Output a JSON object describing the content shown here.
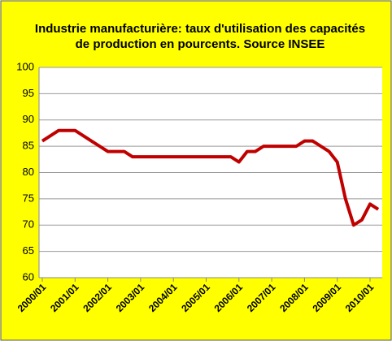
{
  "chart_data": {
    "type": "line",
    "title": [
      "Industrie manufacturière: taux d'utilisation des capacités",
      "de production en pourcents. Source INSEE"
    ],
    "categories": [
      "2000/01",
      null,
      null,
      null,
      "2001/01",
      null,
      null,
      null,
      "2002/01",
      null,
      null,
      null,
      "2003/01",
      null,
      null,
      null,
      "2004/01",
      null,
      null,
      null,
      "2005/01",
      null,
      null,
      null,
      "2006/01",
      null,
      null,
      null,
      "2007/01",
      null,
      null,
      null,
      "2008/01",
      null,
      null,
      null,
      "2009/01",
      null,
      null,
      null,
      "2010/01",
      null
    ],
    "values": [
      86,
      87,
      88,
      88,
      88,
      87,
      86,
      85,
      84,
      84,
      84,
      83,
      83,
      83,
      83,
      83,
      83,
      83,
      83,
      83,
      83,
      83,
      83,
      83,
      82,
      84,
      84,
      85,
      85,
      85,
      85,
      85,
      86,
      86,
      85,
      84,
      82,
      75,
      70,
      71,
      74,
      73
    ],
    "color": "#c00000",
    "ylim": [
      60,
      100
    ],
    "yticks": [
      60,
      65,
      70,
      75,
      80,
      85,
      90,
      95,
      100
    ],
    "grid": true
  }
}
